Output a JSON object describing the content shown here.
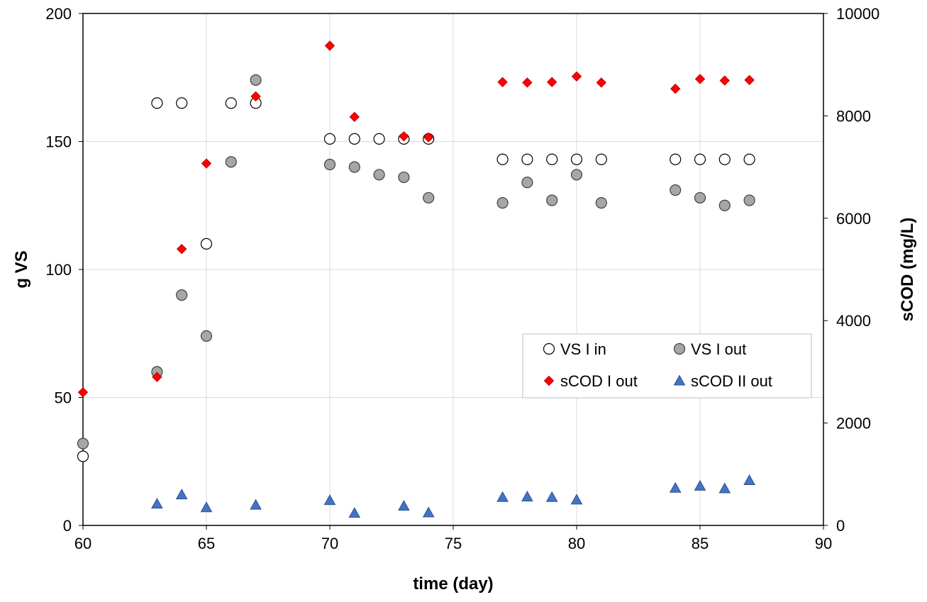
{
  "chart_data": {
    "type": "scatter",
    "title": "",
    "xlabel": "time (day)",
    "ylabel": "g VS",
    "y2label": "sCOD (mg/L)",
    "xlim": [
      60,
      90
    ],
    "ylim": [
      0,
      200
    ],
    "y2lim": [
      0,
      10000
    ],
    "xticks": [
      60,
      65,
      70,
      75,
      80,
      85,
      90
    ],
    "yticks": [
      0,
      50,
      100,
      150,
      200
    ],
    "y2ticks": [
      0,
      2000,
      4000,
      6000,
      8000,
      10000
    ],
    "grid": true,
    "legend_position": "center-right",
    "series": [
      {
        "name": "VS I in",
        "axis": "left",
        "marker": "circle",
        "fill": "#ffffff",
        "stroke": "#000000",
        "x": [
          60,
          63,
          64,
          65,
          66,
          67,
          70,
          71,
          72,
          73,
          74,
          77,
          78,
          79,
          80,
          81,
          84,
          85,
          86,
          87
        ],
        "y": [
          27,
          165,
          165,
          110,
          165,
          165,
          151,
          151,
          151,
          151,
          151,
          143,
          143,
          143,
          143,
          143,
          143,
          143,
          143,
          143
        ]
      },
      {
        "name": "VS I out",
        "axis": "left",
        "marker": "circle",
        "fill": "#a6a6a6",
        "stroke": "#404040",
        "x": [
          60,
          63,
          64,
          65,
          66,
          67,
          70,
          71,
          72,
          73,
          74,
          77,
          78,
          79,
          80,
          81,
          84,
          85,
          86,
          87
        ],
        "y": [
          32,
          60,
          90,
          74,
          142,
          174,
          141,
          140,
          137,
          136,
          128,
          126,
          134,
          127,
          137,
          126,
          131,
          128,
          125,
          127
        ]
      },
      {
        "name": "sCOD I out",
        "axis": "right",
        "marker": "diamond",
        "fill": "#ff0000",
        "stroke": "#c00000",
        "x": [
          60,
          63,
          64,
          65,
          67,
          70,
          71,
          73,
          74,
          77,
          78,
          79,
          80,
          81,
          84,
          85,
          86,
          87
        ],
        "y": [
          2600,
          2900,
          5400,
          7070,
          8380,
          9370,
          7980,
          7600,
          7580,
          8660,
          8650,
          8660,
          8770,
          8650,
          8530,
          8720,
          8690,
          8700
        ]
      },
      {
        "name": "sCOD II out",
        "axis": "right",
        "marker": "triangle",
        "fill": "#4472c4",
        "stroke": "#2f528f",
        "x": [
          63,
          64,
          65,
          67,
          70,
          71,
          73,
          74,
          77,
          78,
          79,
          80,
          84,
          85,
          86,
          87
        ],
        "y": [
          420,
          600,
          350,
          400,
          490,
          240,
          380,
          250,
          550,
          560,
          550,
          500,
          730,
          770,
          720,
          880
        ]
      }
    ]
  }
}
